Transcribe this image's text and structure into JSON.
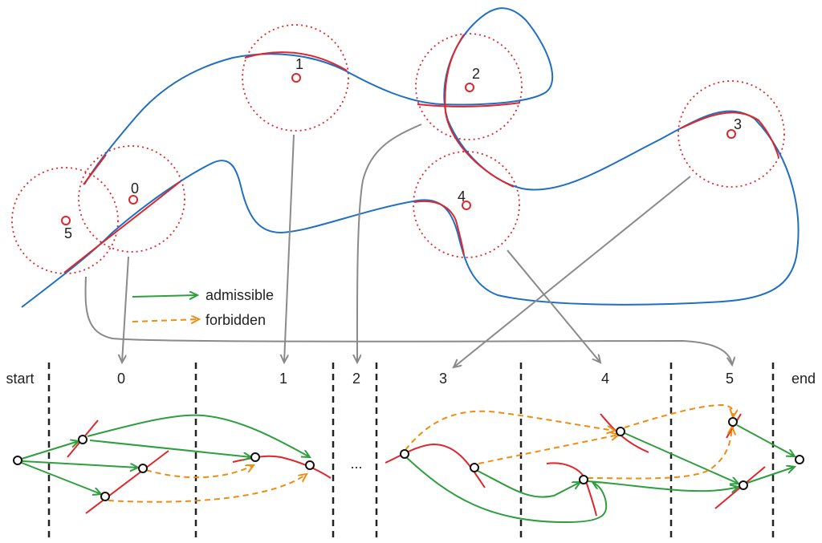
{
  "top": {
    "regions": [
      {
        "label": "0"
      },
      {
        "label": "1"
      },
      {
        "label": "2"
      },
      {
        "label": "3"
      },
      {
        "label": "4"
      },
      {
        "label": "5"
      }
    ]
  },
  "legend": {
    "admissible": "admissible",
    "forbidden": "forbidden",
    "admissible_color": "#2e9e3e",
    "forbidden_color": "#f28c0f"
  },
  "columns": [
    "start",
    "0",
    "1",
    "2",
    "3",
    "4",
    "5",
    "end"
  ],
  "ellipsis": "...",
  "colors": {
    "trajectory": "#1f6fc5",
    "region": "#e0262a",
    "mapping": "#8a8a8a"
  }
}
